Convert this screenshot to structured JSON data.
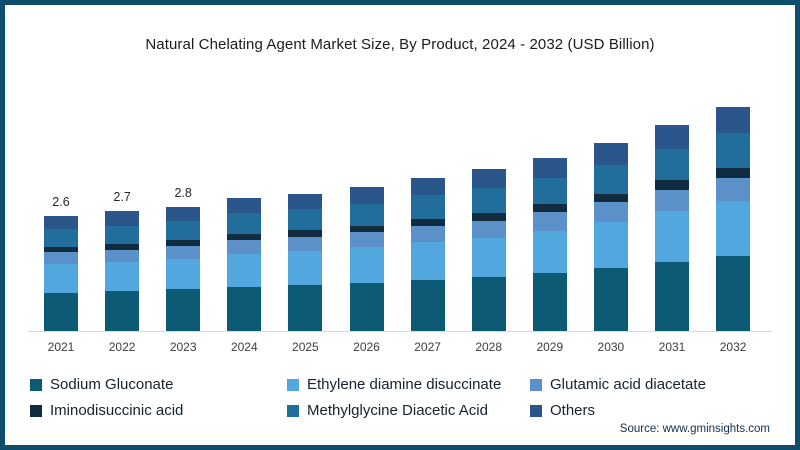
{
  "title": "Natural Chelating Agent Market Size, By Product, 2024 - 2032 (USD Billion)",
  "source": "Source: www.gminsights.com",
  "frame_color": "#0e4d6b",
  "chart_data": {
    "type": "bar",
    "stacked": true,
    "grid": false,
    "legend_position": "bottom",
    "xlabel": "",
    "ylabel": "",
    "unit": "USD Billion",
    "categories": [
      "2021",
      "2022",
      "2023",
      "2024",
      "2025",
      "2026",
      "2027",
      "2028",
      "2029",
      "2030",
      "2031",
      "2032"
    ],
    "totals": [
      2.6,
      2.7,
      2.8,
      3.0,
      3.1,
      3.25,
      3.45,
      3.65,
      3.9,
      4.25,
      4.65,
      5.05
    ],
    "total_labels": [
      "2.6",
      "2.7",
      "2.8",
      "",
      "",
      "",
      "",
      "",
      "",
      "",
      "",
      ""
    ],
    "series": [
      {
        "name": "Sodium Gluconate",
        "color": "#0d5a74",
        "values": [
          0.87,
          0.9,
          0.94,
          1.0,
          1.04,
          1.09,
          1.16,
          1.22,
          1.31,
          1.42,
          1.56,
          1.69
        ]
      },
      {
        "name": "Ethylene diamine disuccinate",
        "color": "#52a8de",
        "values": [
          0.64,
          0.66,
          0.69,
          0.74,
          0.76,
          0.8,
          0.85,
          0.89,
          0.96,
          1.04,
          1.14,
          1.24
        ]
      },
      {
        "name": "Glutamic acid diacetate",
        "color": "#5b90c8",
        "values": [
          0.27,
          0.28,
          0.29,
          0.31,
          0.33,
          0.34,
          0.36,
          0.38,
          0.41,
          0.45,
          0.49,
          0.53
        ]
      },
      {
        "name": "Iminodisuccinic acid",
        "color": "#112c3f",
        "values": [
          0.12,
          0.12,
          0.13,
          0.14,
          0.14,
          0.15,
          0.16,
          0.17,
          0.18,
          0.19,
          0.21,
          0.23
        ]
      },
      {
        "name": "Methylglycine Diacetic Acid",
        "color": "#216d9b",
        "values": [
          0.4,
          0.42,
          0.43,
          0.47,
          0.48,
          0.5,
          0.53,
          0.57,
          0.6,
          0.66,
          0.72,
          0.78
        ]
      },
      {
        "name": "Others",
        "color": "#2b568c",
        "values": [
          0.3,
          0.32,
          0.32,
          0.34,
          0.35,
          0.37,
          0.39,
          0.42,
          0.44,
          0.49,
          0.53,
          0.58
        ]
      }
    ]
  },
  "legend": {
    "items": [
      {
        "label": "Sodium Gluconate",
        "color": "#0d5a74"
      },
      {
        "label": "Ethylene diamine disuccinate",
        "color": "#52a8de"
      },
      {
        "label": "Glutamic acid diacetate",
        "color": "#5b90c8"
      },
      {
        "label": "Iminodisuccinic acid",
        "color": "#112c3f"
      },
      {
        "label": "Methylglycine Diacetic Acid",
        "color": "#216d9b"
      },
      {
        "label": "Others",
        "color": "#2b568c"
      }
    ]
  }
}
